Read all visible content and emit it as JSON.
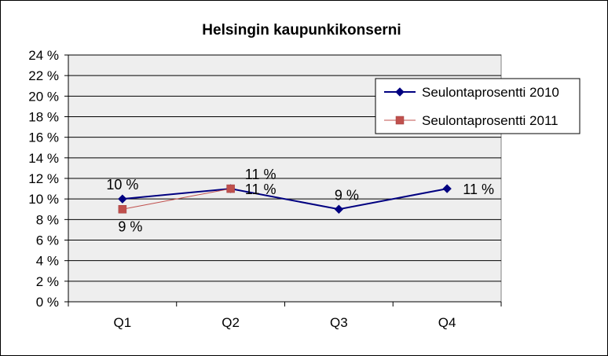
{
  "chart_data": {
    "type": "line",
    "title": "Helsingin kaupunkikonserni",
    "xlabel": "",
    "ylabel": "",
    "categories": [
      "Q1",
      "Q2",
      "Q3",
      "Q4"
    ],
    "ylim": [
      0,
      24
    ],
    "y_ticks": [
      0,
      2,
      4,
      6,
      8,
      10,
      12,
      14,
      16,
      18,
      20,
      22,
      24
    ],
    "y_tick_labels": [
      "0 %",
      "2 %",
      "4 %",
      "6 %",
      "8 %",
      "10 %",
      "12 %",
      "14 %",
      "16 %",
      "18 %",
      "20 %",
      "22 %",
      "24 %"
    ],
    "grid": true,
    "legend_position": "top-right",
    "series": [
      {
        "name": "Seulontaprosentti 2010",
        "values": [
          10,
          11,
          9,
          11
        ],
        "data_labels": [
          "10 %",
          "11 %",
          "9 %",
          "11 %"
        ],
        "color": "#000080",
        "marker": "diamond"
      },
      {
        "name": "Seulontaprosentti 2011",
        "values": [
          9,
          11,
          null,
          null
        ],
        "data_labels": [
          "9 %",
          "11 %",
          null,
          null
        ],
        "color": "#c0504d",
        "marker": "square"
      }
    ],
    "plot_background": "#eeeeee"
  }
}
